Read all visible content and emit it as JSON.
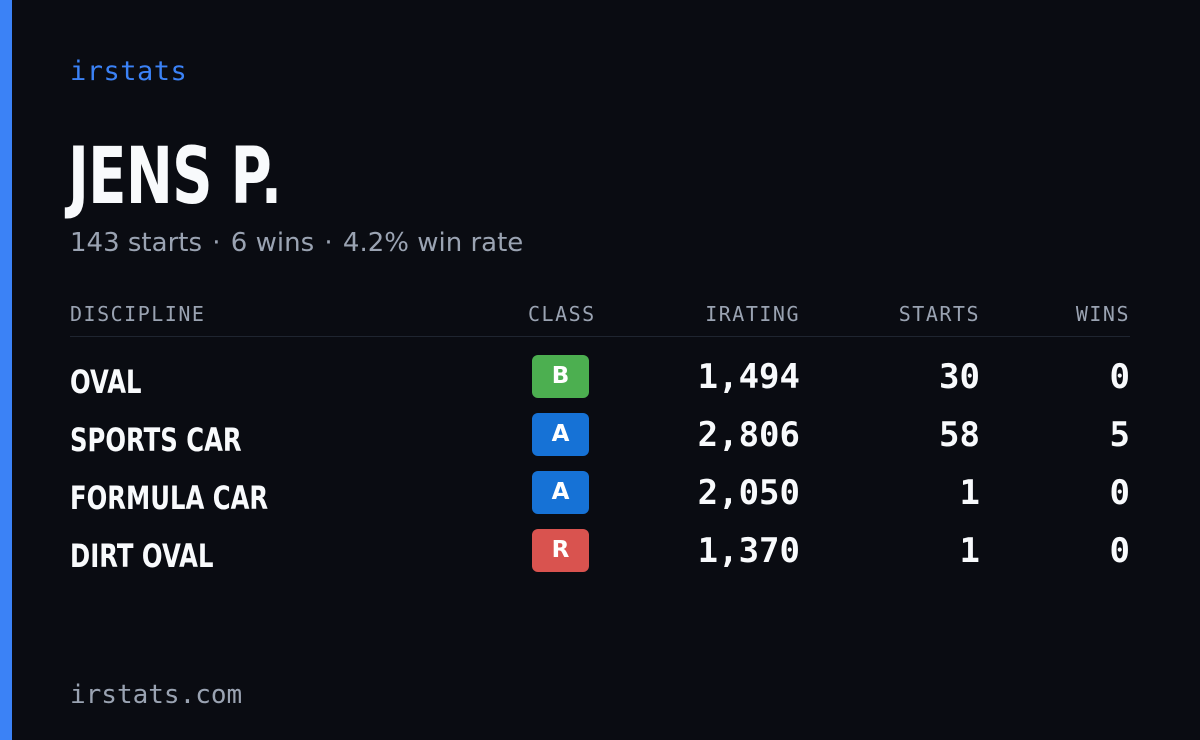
{
  "brand": "irstats",
  "driver": {
    "name": "JENS P.",
    "starts_text": "143 starts",
    "wins_text": "6 wins",
    "win_rate_text": "4.2% win rate",
    "separator": "·"
  },
  "table": {
    "headers": {
      "discipline": "DISCIPLINE",
      "class": "CLASS",
      "irating": "IRATING",
      "starts": "STARTS",
      "wins": "WINS"
    },
    "rows": [
      {
        "discipline": "OVAL",
        "class": "B",
        "class_color": "#4caf50",
        "irating": "1,494",
        "starts": "30",
        "wins": "0"
      },
      {
        "discipline": "SPORTS CAR",
        "class": "A",
        "class_color": "#1672d6",
        "irating": "2,806",
        "starts": "58",
        "wins": "5"
      },
      {
        "discipline": "FORMULA CAR",
        "class": "A",
        "class_color": "#1672d6",
        "irating": "2,050",
        "starts": "1",
        "wins": "0"
      },
      {
        "discipline": "DIRT OVAL",
        "class": "R",
        "class_color": "#d9534f",
        "irating": "1,370",
        "starts": "1",
        "wins": "0"
      }
    ]
  },
  "footer": "irstats.com",
  "colors": {
    "accent": "#3b82f6",
    "background": "#0a0c12",
    "muted": "#9aa3b2",
    "text": "#f8fafc"
  }
}
